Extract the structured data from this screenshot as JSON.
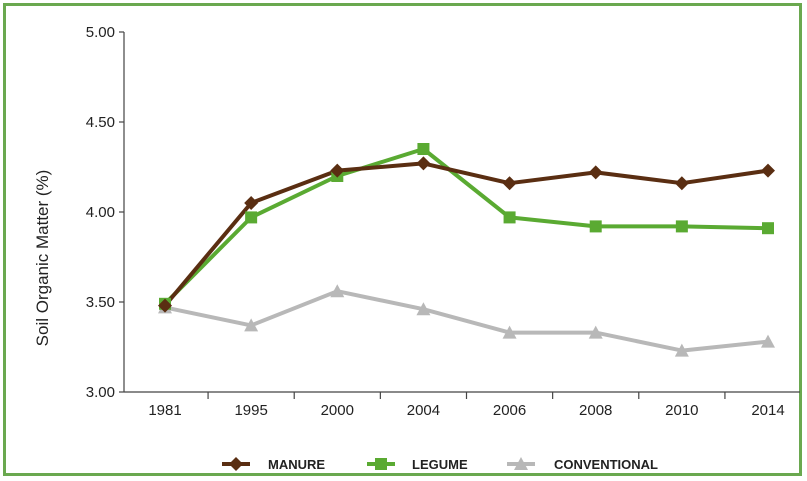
{
  "chart_data": {
    "type": "line",
    "categories": [
      "1981",
      "1995",
      "2000",
      "2004",
      "2006",
      "2008",
      "2010",
      "2014"
    ],
    "series": [
      {
        "name": "MANURE",
        "color": "#5a2e12",
        "marker": "diamond",
        "values": [
          3.48,
          4.05,
          4.23,
          4.27,
          4.16,
          4.22,
          4.16,
          4.23
        ]
      },
      {
        "name": "LEGUME",
        "color": "#5aaa32",
        "marker": "square",
        "values": [
          3.49,
          3.97,
          4.2,
          4.35,
          3.97,
          3.92,
          3.92,
          3.91
        ]
      },
      {
        "name": "CONVENTIONAL",
        "color": "#b8b8b8",
        "marker": "triangle",
        "values": [
          3.47,
          3.37,
          3.56,
          3.46,
          3.33,
          3.33,
          3.23,
          3.28
        ]
      }
    ],
    "yticks": [
      "5.00",
      "4.50",
      "4.00",
      "3.50",
      "3.00"
    ],
    "ylabel": "Soil Organic Matter (%)",
    "xlabel": "",
    "title": "",
    "ylim": [
      3.0,
      5.0
    ],
    "legend_position": "bottom",
    "grid": false
  }
}
